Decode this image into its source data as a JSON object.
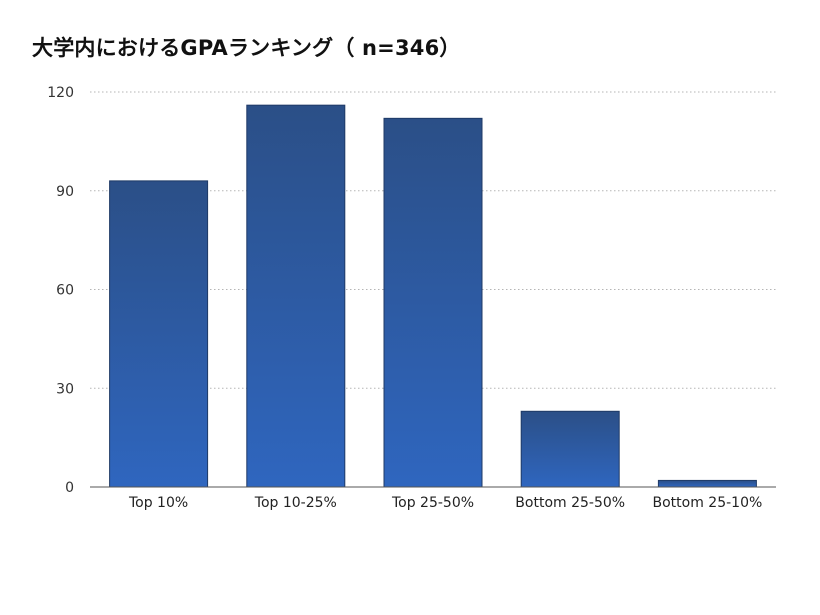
{
  "chart_data": {
    "type": "bar",
    "title": "大学内におけるGPAランキング（ n=346）",
    "xlabel": "",
    "ylabel": "",
    "categories": [
      "Top 10%",
      "Top 10-25%",
      "Top 25-50%",
      "Bottom 25-50%",
      "Bottom 25-10%"
    ],
    "values": [
      93,
      116,
      112,
      23,
      2
    ],
    "ylim": [
      0,
      120
    ],
    "yticks": [
      0,
      30,
      60,
      90,
      120
    ],
    "grid": true,
    "grid_style": "dotted",
    "legend": "none",
    "colors": {
      "bar_top": "#2b4f87",
      "bar_bottom": "#2f66bf",
      "bar_stroke": "#1f3a66",
      "grid": "#b5b5b5",
      "axis": "#555555"
    }
  }
}
